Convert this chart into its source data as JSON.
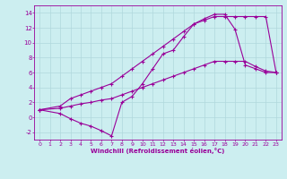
{
  "xlabel": "Windchill (Refroidissement éolien,°C)",
  "bg_color": "#cceef0",
  "line_color": "#990099",
  "grid_color": "#b0d8dc",
  "xlim": [
    -0.5,
    23.5
  ],
  "ylim": [
    -3,
    15
  ],
  "xticks": [
    0,
    1,
    2,
    3,
    4,
    5,
    6,
    7,
    8,
    9,
    10,
    11,
    12,
    13,
    14,
    15,
    16,
    17,
    18,
    19,
    20,
    21,
    22,
    23
  ],
  "yticks": [
    -2,
    0,
    2,
    4,
    6,
    8,
    10,
    12,
    14
  ],
  "line1_x": [
    0,
    2,
    3,
    4,
    5,
    6,
    7,
    8,
    9,
    10,
    11,
    12,
    13,
    14,
    15,
    16,
    17,
    18,
    19,
    20,
    21,
    22,
    23
  ],
  "line1_y": [
    1.0,
    1.5,
    2.5,
    3.0,
    3.5,
    4.0,
    4.5,
    5.5,
    6.5,
    7.5,
    8.5,
    9.5,
    10.5,
    11.5,
    12.5,
    13.0,
    13.5,
    13.5,
    13.5,
    13.5,
    13.5,
    13.5,
    6.0
  ],
  "line2_x": [
    0,
    2,
    3,
    4,
    5,
    6,
    7,
    8,
    9,
    10,
    11,
    12,
    13,
    14,
    15,
    16,
    17,
    18,
    19,
    20,
    21,
    22,
    23
  ],
  "line2_y": [
    1.0,
    0.5,
    -0.2,
    -0.8,
    -1.2,
    -1.8,
    -2.5,
    2.0,
    2.8,
    4.5,
    6.5,
    8.5,
    9.0,
    10.8,
    12.5,
    13.2,
    13.8,
    13.8,
    11.8,
    7.0,
    6.5,
    6.0,
    6.0
  ],
  "line3_x": [
    0,
    2,
    3,
    4,
    5,
    6,
    7,
    8,
    9,
    10,
    11,
    12,
    13,
    14,
    15,
    16,
    17,
    18,
    19,
    20,
    21,
    22,
    23
  ],
  "line3_y": [
    1.0,
    1.2,
    1.5,
    1.8,
    2.0,
    2.3,
    2.5,
    3.0,
    3.5,
    4.0,
    4.5,
    5.0,
    5.5,
    6.0,
    6.5,
    7.0,
    7.5,
    7.5,
    7.5,
    7.5,
    6.8,
    6.2,
    6.0
  ]
}
